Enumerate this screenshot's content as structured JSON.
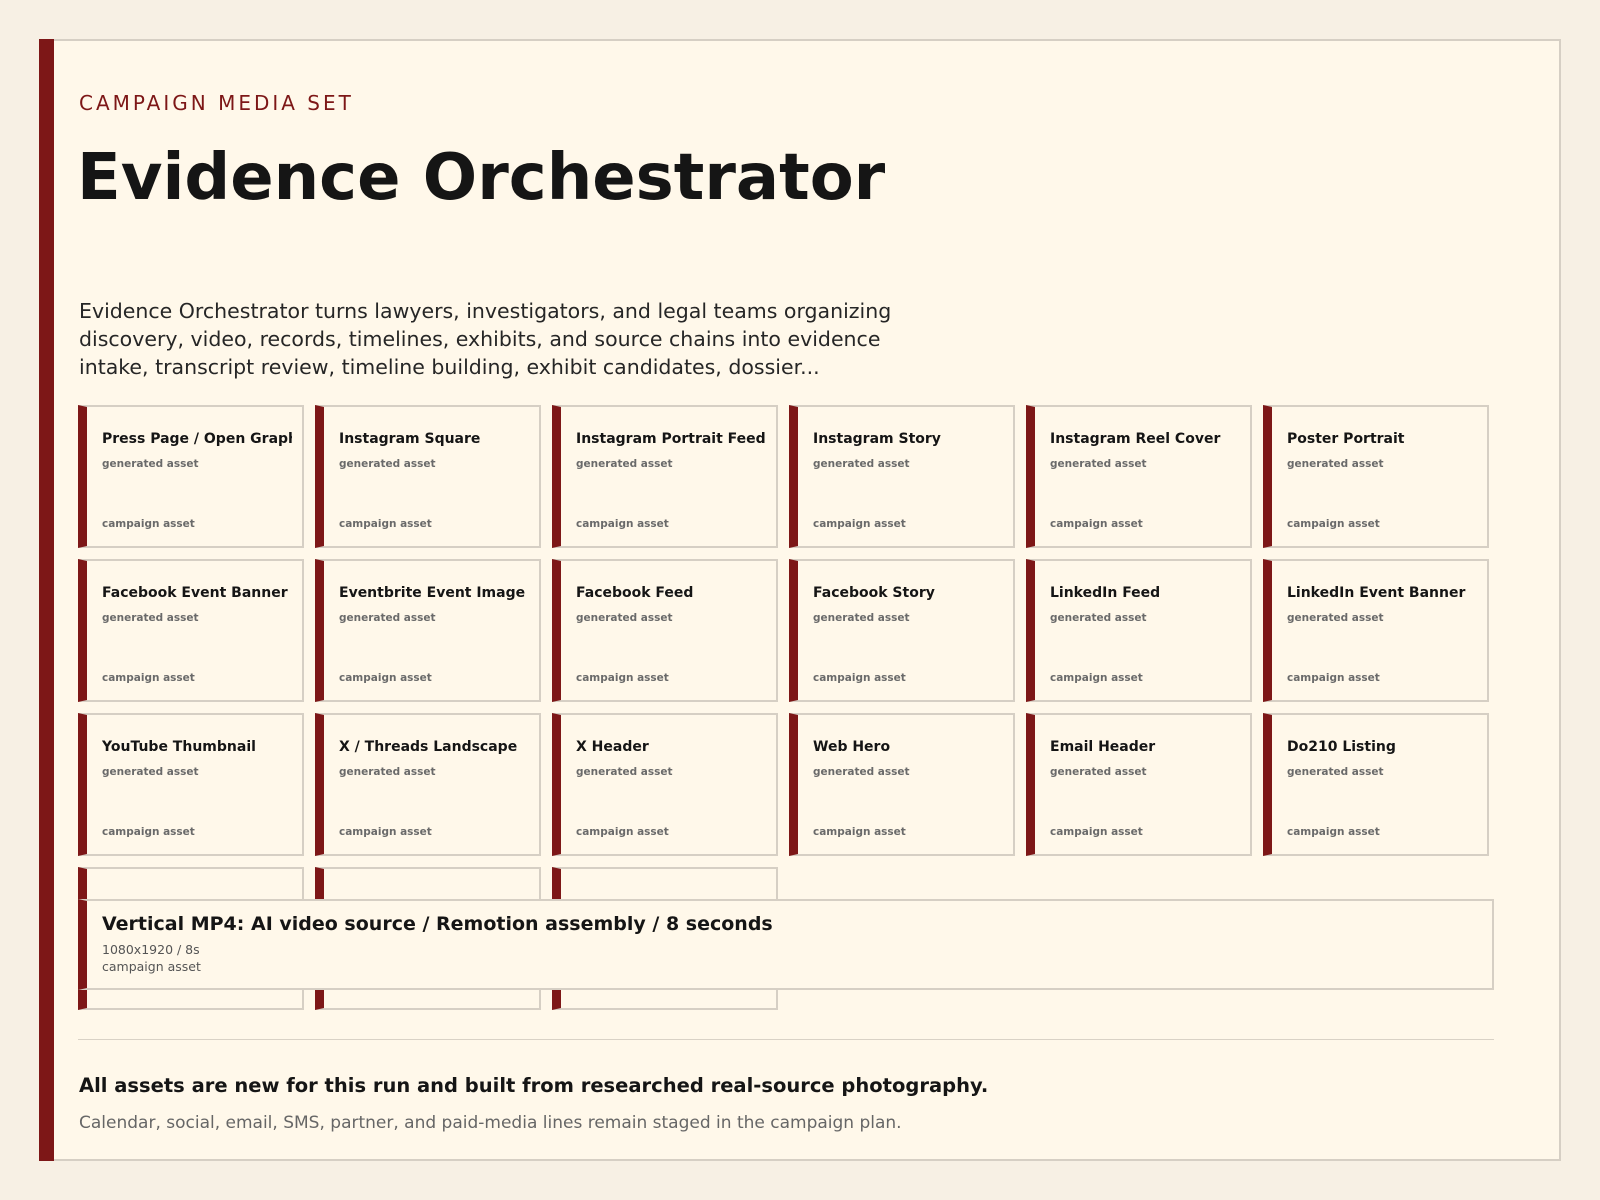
{
  "header": {
    "eyebrow": "CAMPAIGN MEDIA SET",
    "title": "Evidence Orchestrator",
    "description": "Evidence Orchestrator turns lawyers, investigators, and legal teams organizing discovery, video, records, timelines, exhibits, and source chains into evidence intake, transcript review, timeline building, exhibit candidates, dossier..."
  },
  "assets": [
    {
      "title": "Press Page / Open Graph",
      "subtitle": "generated asset",
      "tag": "campaign asset"
    },
    {
      "title": "Instagram Square",
      "subtitle": "generated asset",
      "tag": "campaign asset"
    },
    {
      "title": "Instagram Portrait Feed",
      "subtitle": "generated asset",
      "tag": "campaign asset"
    },
    {
      "title": "Instagram Story",
      "subtitle": "generated asset",
      "tag": "campaign asset"
    },
    {
      "title": "Instagram Reel Cover",
      "subtitle": "generated asset",
      "tag": "campaign asset"
    },
    {
      "title": "Poster Portrait",
      "subtitle": "generated asset",
      "tag": "campaign asset"
    },
    {
      "title": "Facebook Event Banner",
      "subtitle": "generated asset",
      "tag": "campaign asset"
    },
    {
      "title": "Eventbrite Event Image",
      "subtitle": "generated asset",
      "tag": "campaign asset"
    },
    {
      "title": "Facebook Feed",
      "subtitle": "generated asset",
      "tag": "campaign asset"
    },
    {
      "title": "Facebook Story",
      "subtitle": "generated asset",
      "tag": "campaign asset"
    },
    {
      "title": "LinkedIn Feed",
      "subtitle": "generated asset",
      "tag": "campaign asset"
    },
    {
      "title": "LinkedIn Event Banner",
      "subtitle": "generated asset",
      "tag": "campaign asset"
    },
    {
      "title": "YouTube Thumbnail",
      "subtitle": "generated asset",
      "tag": "campaign asset"
    },
    {
      "title": "X / Threads Landscape",
      "subtitle": "generated asset",
      "tag": "campaign asset"
    },
    {
      "title": "X Header",
      "subtitle": "generated asset",
      "tag": "campaign asset"
    },
    {
      "title": "Web Hero",
      "subtitle": "generated asset",
      "tag": "campaign asset"
    },
    {
      "title": "Email Header",
      "subtitle": "generated asset",
      "tag": "campaign asset"
    },
    {
      "title": "Do210 Listing",
      "subtitle": "generated asset",
      "tag": "campaign asset"
    },
    {
      "title": "",
      "subtitle": "",
      "tag": ""
    },
    {
      "title": "",
      "subtitle": "",
      "tag": ""
    },
    {
      "title": "",
      "subtitle": "",
      "tag": ""
    }
  ],
  "video": {
    "title": "Vertical MP4: AI video source / Remotion assembly / 8 seconds",
    "spec": "1080x1920 / 8s",
    "tag": "campaign asset"
  },
  "footer": {
    "main": "All assets are new for this run and built from researched real-source photography.",
    "sub": "Calendar, social, email, SMS, partner, and paid-media lines remain staged in the campaign plan."
  },
  "colors": {
    "accent": "#7d1717",
    "page_background": "#f7f0e4",
    "panel_background": "#fff8ea",
    "border": "#d6cfc4"
  }
}
